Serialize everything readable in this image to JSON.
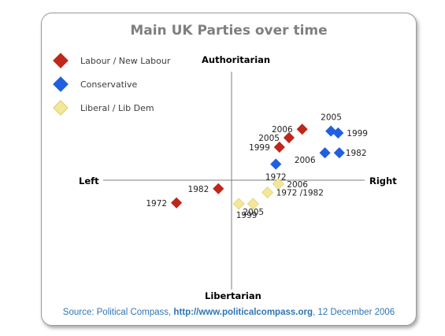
{
  "chart_data": {
    "type": "scatter",
    "title": "Main UK Parties over time",
    "axes": {
      "top": "Authoritarian",
      "bottom": "Libertarian",
      "left": "Left",
      "right": "Right"
    },
    "xlim": [
      -10,
      10
    ],
    "ylim": [
      -10,
      10
    ],
    "grid": false,
    "legend_position": "top-left",
    "series": [
      {
        "name": "Labour / New Labour",
        "color": "#c0261a",
        "points": [
          {
            "label": "1972",
            "x": -4.6,
            "y": -2.4
          },
          {
            "label": "1982",
            "x": -1.1,
            "y": -0.9
          },
          {
            "label": "1999",
            "x": 4.0,
            "y": 3.5
          },
          {
            "label": "2005",
            "x": 4.8,
            "y": 4.5
          },
          {
            "label": "2006",
            "x": 5.9,
            "y": 5.4
          }
        ]
      },
      {
        "name": "Conservative",
        "color": "#1f5fe0",
        "points": [
          {
            "label": "1972",
            "x": 3.7,
            "y": 1.7
          },
          {
            "label": "2006",
            "x": 7.8,
            "y": 2.9
          },
          {
            "label": "1982",
            "x": 9.0,
            "y": 2.9
          },
          {
            "label": "2005",
            "x": 8.3,
            "y": 5.2
          },
          {
            "label": "1999",
            "x": 8.9,
            "y": 5.0
          }
        ]
      },
      {
        "name": "Liberal / Lib Dem",
        "color": "#f3e79a",
        "points": [
          {
            "label": "2006",
            "x": 3.9,
            "y": -0.4
          },
          {
            "label": "1972 /1982",
            "x": 3.0,
            "y": -1.3
          },
          {
            "label": "1999",
            "x": 0.6,
            "y": -2.5
          },
          {
            "label": "2005",
            "x": 1.8,
            "y": -2.5
          }
        ]
      }
    ]
  },
  "source": {
    "prefix": "Source: Political Compass, ",
    "url": "http://www.politicalcompass.org",
    "suffix": ", 12 December 2006"
  }
}
